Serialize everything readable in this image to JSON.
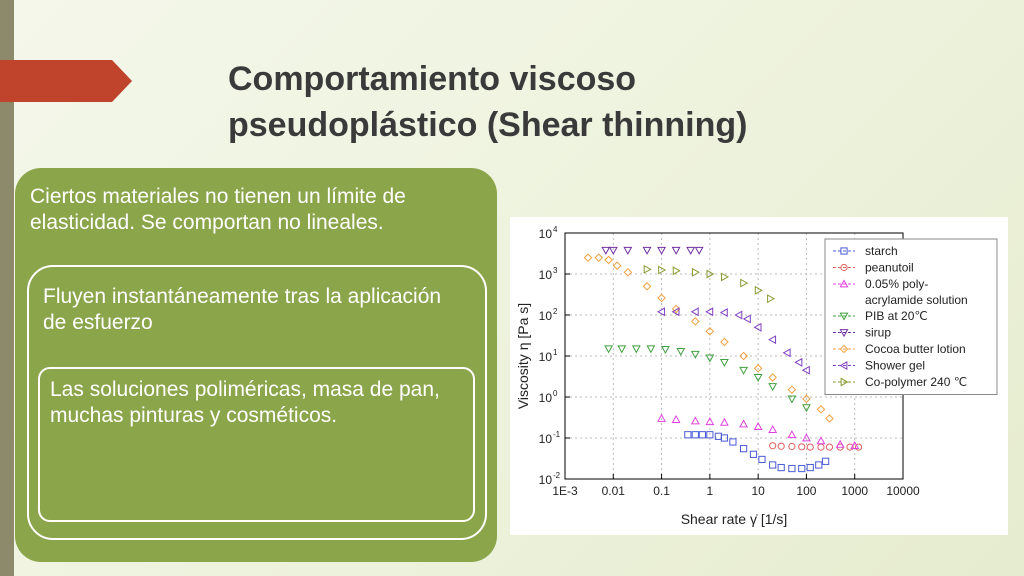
{
  "slide": {
    "title": "Comportamiento viscoso pseudoplástico (Shear thinning)",
    "boxes": [
      "Ciertos materiales no tienen un límite de elasticidad. Se comportan no lineales.",
      "Fluyen instantáneamente tras la aplicación de esfuerzo",
      "Las soluciones poliméricas, masa de pan, muchas pinturas y cosméticos."
    ]
  },
  "chart_data": {
    "type": "scatter",
    "x_label": "Shear rate γ̇ [1/s]",
    "y_label": "Viscosity η [Pa s]",
    "xlog": true,
    "ylog": true,
    "grid": true,
    "legend": "upper right",
    "xlim": [
      0.001,
      10000
    ],
    "xticks": [
      {
        "value": 0.001,
        "label": "1E-3"
      },
      0.01,
      0.1,
      1,
      10,
      100,
      1000,
      10000
    ],
    "ylim": [
      0.01,
      10000
    ],
    "yticks": [
      {
        "value": 0.01,
        "label": "10",
        "exponent": "-2"
      },
      {
        "value": 0.1,
        "label": "10",
        "exponent": "-1"
      },
      {
        "value": 1,
        "label": "10",
        "exponent": "0"
      },
      {
        "value": 10,
        "label": "10",
        "exponent": "1"
      },
      {
        "value": 100,
        "label": "10",
        "exponent": "2"
      },
      {
        "value": 1000,
        "label": "10",
        "exponent": "3"
      },
      {
        "value": 10000,
        "label": "10",
        "exponent": "4"
      }
    ],
    "series": [
      {
        "name": "starch",
        "color": "#4a5bd4",
        "marker": "square",
        "x": [
          0.35,
          0.5,
          0.7,
          1,
          1.5,
          2,
          3,
          5,
          8,
          12,
          20,
          30,
          50,
          80,
          120,
          180,
          250
        ],
        "values": [
          0.12,
          0.12,
          0.12,
          0.12,
          0.11,
          0.1,
          0.08,
          0.055,
          0.04,
          0.03,
          0.022,
          0.019,
          0.018,
          0.018,
          0.019,
          0.022,
          0.027
        ]
      },
      {
        "name": "peanutoil",
        "color": "#e06060",
        "marker": "circle",
        "x": [
          20,
          30,
          50,
          80,
          120,
          200,
          300,
          500,
          800,
          1200
        ],
        "values": [
          0.065,
          0.063,
          0.062,
          0.061,
          0.06,
          0.06,
          0.06,
          0.06,
          0.06,
          0.06
        ]
      },
      {
        "name": "0.05% poly-acrylamide solution",
        "color": "#e040e0",
        "marker": "up",
        "x": [
          0.1,
          0.2,
          0.5,
          1,
          2,
          5,
          10,
          20,
          50,
          100,
          200,
          500,
          1000
        ],
        "values": [
          0.3,
          0.28,
          0.26,
          0.25,
          0.24,
          0.22,
          0.19,
          0.16,
          0.12,
          0.1,
          0.085,
          0.07,
          0.065
        ]
      },
      {
        "name": "PIB at 20℃",
        "color": "#40a040",
        "marker": "down",
        "x": [
          0.008,
          0.015,
          0.03,
          0.06,
          0.12,
          0.25,
          0.5,
          1,
          2,
          5,
          10,
          20,
          50,
          100
        ],
        "values": [
          15,
          15,
          15,
          15,
          14.5,
          13,
          11,
          9,
          7,
          4.5,
          3,
          1.8,
          0.9,
          0.55
        ]
      },
      {
        "name": "sirup",
        "color": "#7030a0",
        "marker": "down",
        "x": [
          0.007,
          0.01,
          0.02,
          0.05,
          0.1,
          0.2,
          0.4,
          0.6
        ],
        "values": [
          3800,
          3800,
          3800,
          3800,
          3800,
          3800,
          3800,
          3800
        ]
      },
      {
        "name": "Cocoa butter lotion",
        "color": "#f0a040",
        "marker": "diamond",
        "x": [
          0.003,
          0.005,
          0.008,
          0.012,
          0.02,
          0.05,
          0.1,
          0.2,
          0.5,
          1,
          2,
          5,
          10,
          20,
          50,
          100,
          200,
          300
        ],
        "values": [
          2500,
          2500,
          2200,
          1600,
          1100,
          500,
          260,
          140,
          70,
          40,
          22,
          10,
          5,
          3,
          1.5,
          0.9,
          0.5,
          0.3
        ]
      },
      {
        "name": "Shower gel",
        "color": "#8040c0",
        "marker": "left",
        "x": [
          0.1,
          0.2,
          0.5,
          1,
          2,
          4,
          6,
          10,
          20,
          40,
          70,
          100
        ],
        "values": [
          120,
          120,
          120,
          120,
          115,
          100,
          80,
          50,
          25,
          12,
          7,
          4.5
        ]
      },
      {
        "name": "Co-polymer 240 ℃",
        "color": "#8a9a30",
        "marker": "right",
        "x": [
          0.05,
          0.1,
          0.2,
          0.5,
          1,
          2,
          5,
          10,
          18
        ],
        "values": [
          1300,
          1250,
          1200,
          1100,
          1000,
          850,
          600,
          400,
          250
        ]
      }
    ]
  }
}
